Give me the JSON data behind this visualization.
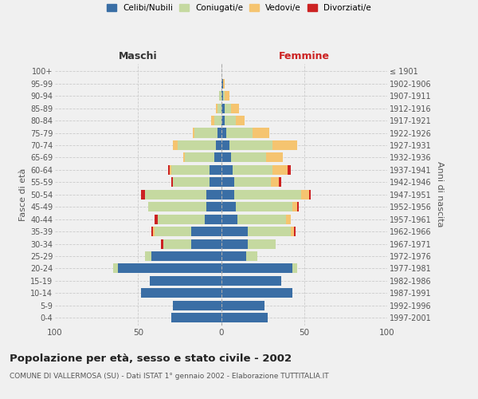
{
  "age_groups": [
    "0-4",
    "5-9",
    "10-14",
    "15-19",
    "20-24",
    "25-29",
    "30-34",
    "35-39",
    "40-44",
    "45-49",
    "50-54",
    "55-59",
    "60-64",
    "65-69",
    "70-74",
    "75-79",
    "80-84",
    "85-89",
    "90-94",
    "95-99",
    "100+"
  ],
  "birth_years": [
    "1997-2001",
    "1992-1996",
    "1987-1991",
    "1982-1986",
    "1977-1981",
    "1972-1976",
    "1967-1971",
    "1962-1966",
    "1957-1961",
    "1952-1956",
    "1947-1951",
    "1942-1946",
    "1937-1941",
    "1932-1936",
    "1927-1931",
    "1922-1926",
    "1917-1921",
    "1912-1916",
    "1907-1911",
    "1902-1906",
    "≤ 1901"
  ],
  "maschi": {
    "celibi": [
      30,
      29,
      48,
      43,
      62,
      42,
      18,
      18,
      10,
      9,
      9,
      7,
      7,
      4,
      3,
      2,
      0,
      0,
      0,
      0,
      0
    ],
    "coniugati": [
      0,
      0,
      0,
      0,
      3,
      4,
      17,
      22,
      28,
      35,
      37,
      22,
      23,
      18,
      23,
      14,
      4,
      2,
      1,
      0,
      0
    ],
    "vedovi": [
      0,
      0,
      0,
      0,
      0,
      0,
      0,
      1,
      0,
      0,
      0,
      0,
      1,
      1,
      3,
      1,
      2,
      1,
      0,
      0,
      0
    ],
    "divorziati": [
      0,
      0,
      0,
      0,
      0,
      0,
      1,
      1,
      2,
      0,
      2,
      1,
      1,
      0,
      0,
      0,
      0,
      0,
      0,
      0,
      0
    ]
  },
  "femmine": {
    "nubili": [
      28,
      26,
      43,
      36,
      43,
      15,
      16,
      16,
      10,
      9,
      8,
      8,
      7,
      6,
      5,
      3,
      2,
      2,
      1,
      1,
      0
    ],
    "coniugate": [
      0,
      0,
      0,
      0,
      3,
      7,
      17,
      26,
      29,
      34,
      40,
      22,
      24,
      21,
      26,
      16,
      7,
      4,
      1,
      0,
      0
    ],
    "vedove": [
      0,
      0,
      0,
      0,
      0,
      0,
      0,
      2,
      3,
      3,
      5,
      5,
      9,
      10,
      15,
      10,
      5,
      5,
      3,
      1,
      0
    ],
    "divorziate": [
      0,
      0,
      0,
      0,
      0,
      0,
      0,
      1,
      0,
      1,
      1,
      1,
      2,
      0,
      0,
      0,
      0,
      0,
      0,
      0,
      0
    ]
  },
  "colors": {
    "celibi": "#3a6ea5",
    "coniugati": "#c5d9a0",
    "vedovi": "#f5c470",
    "divorziati": "#cc2222"
  },
  "xlim": 100,
  "title": "Popolazione per età, sesso e stato civile - 2002",
  "subtitle": "COMUNE DI VALLERMOSA (SU) - Dati ISTAT 1° gennaio 2002 - Elaborazione TUTTITALIA.IT",
  "ylabel_left": "Fasce di età",
  "ylabel_right": "Anni di nascita",
  "xlabel_left": "Maschi",
  "xlabel_right": "Femmine",
  "bg_color": "#f0f0f0",
  "grid_color": "#cccccc"
}
